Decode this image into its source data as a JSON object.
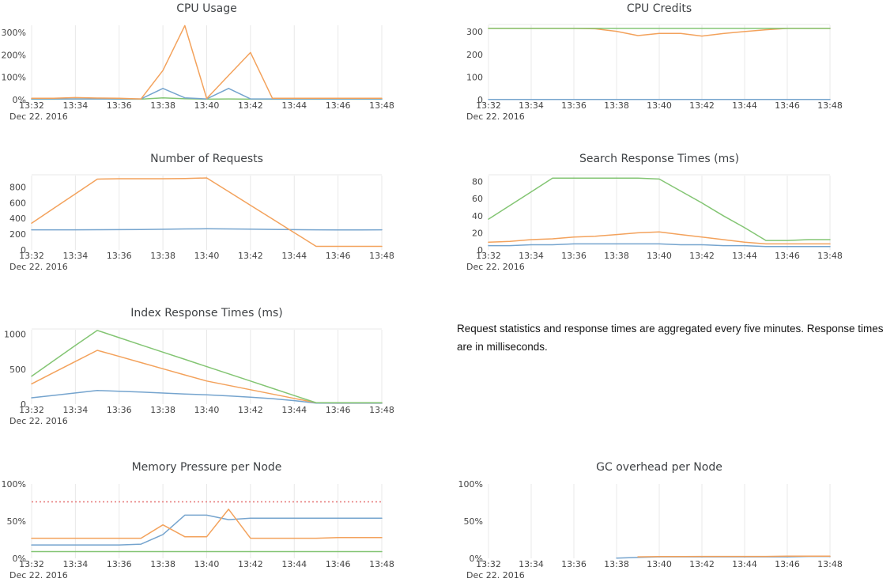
{
  "palette": {
    "blue": "#75a4ce",
    "orange": "#f3a25c",
    "green": "#83c573",
    "red": "#e88383",
    "grid": "#e8e8e8",
    "tick_text": "#444444",
    "title_text": "#3f4245"
  },
  "x_axis": {
    "tick_labels": [
      "13:32",
      "13:34",
      "13:36",
      "13:38",
      "13:40",
      "13:42",
      "13:44",
      "13:46",
      "13:48"
    ],
    "date_label": "Dec 22. 2016",
    "minutes": [
      32,
      33,
      34,
      35,
      36,
      37,
      38,
      39,
      40,
      41,
      42,
      43,
      44,
      45,
      46,
      47,
      48
    ]
  },
  "note": {
    "text": "Request statistics and response times are aggregated every five minutes. Response times are in milliseconds."
  },
  "chart_data": [
    {
      "type": "line",
      "title": "CPU Usage",
      "ylim": [
        0,
        335
      ],
      "y_ticks": [
        0,
        100,
        200,
        300
      ],
      "y_tick_labels": [
        "0%",
        "100%",
        "200%",
        "300%"
      ],
      "top_border": false,
      "series": [
        {
          "name": "series-green",
          "color": "green",
          "values": [
            2,
            2,
            3,
            3,
            2,
            2,
            8,
            4,
            2,
            3,
            2,
            2,
            2,
            2,
            2,
            2,
            2
          ]
        },
        {
          "name": "series-blue",
          "color": "blue",
          "values": [
            3,
            3,
            3,
            3,
            3,
            3,
            50,
            8,
            3,
            50,
            3,
            3,
            3,
            3,
            3,
            3,
            3
          ]
        },
        {
          "name": "series-orange",
          "color": "orange",
          "values": [
            6,
            6,
            9,
            7,
            6,
            3,
            130,
            330,
            5,
            108,
            210,
            6,
            6,
            6,
            6,
            6,
            6
          ]
        }
      ]
    },
    {
      "type": "line",
      "title": "CPU Credits",
      "ylim": [
        0,
        332
      ],
      "y_ticks": [
        0,
        100,
        200,
        300
      ],
      "y_tick_labels": [
        "0",
        "100",
        "200",
        "300"
      ],
      "top_border": true,
      "series": [
        {
          "name": "series-blue",
          "color": "blue",
          "values": [
            1,
            1,
            1,
            1,
            1,
            1,
            1,
            1,
            1,
            1,
            1,
            1,
            1,
            1,
            1,
            1,
            1
          ]
        },
        {
          "name": "series-orange",
          "color": "orange",
          "values": [
            315,
            315,
            315,
            315,
            315,
            313,
            302,
            283,
            293,
            293,
            281,
            292,
            301,
            309,
            315,
            315,
            315
          ]
        },
        {
          "name": "series-green",
          "color": "green",
          "values": [
            315,
            315,
            315,
            315,
            315,
            315,
            315,
            315,
            315,
            315,
            315,
            315,
            315,
            315,
            315,
            315,
            315
          ]
        }
      ]
    },
    {
      "type": "line",
      "title": "Number of Requests",
      "ylim": [
        0,
        955
      ],
      "y_ticks": [
        0,
        200,
        400,
        600,
        800
      ],
      "y_tick_labels": [
        "0",
        "200",
        "400",
        "600",
        "800"
      ],
      "top_border": true,
      "series": [
        {
          "name": "series-blue",
          "color": "blue",
          "values": [
            255,
            255,
            255,
            256,
            257,
            258,
            262,
            266,
            268,
            266,
            263,
            260,
            257,
            255,
            254,
            254,
            255
          ]
        },
        {
          "name": "series-orange",
          "color": "orange",
          "values": [
            340,
            527,
            713,
            900,
            905,
            905,
            905,
            908,
            915,
            741,
            567,
            393,
            219,
            45,
            45,
            45,
            45
          ]
        }
      ]
    },
    {
      "type": "line",
      "title": "Search Response Times (ms)",
      "ylim": [
        0,
        88
      ],
      "y_ticks": [
        0,
        20,
        40,
        60,
        80
      ],
      "y_tick_labels": [
        "0",
        "20",
        "40",
        "60",
        "80"
      ],
      "top_border": true,
      "series": [
        {
          "name": "series-blue",
          "color": "blue",
          "values": [
            5,
            5,
            6,
            6,
            7,
            7,
            7,
            7,
            7,
            6,
            6,
            5,
            5,
            4,
            4,
            4,
            4
          ]
        },
        {
          "name": "series-orange",
          "color": "orange",
          "values": [
            9,
            10,
            12,
            13,
            15,
            16,
            18,
            20,
            21,
            18,
            15,
            12,
            9,
            7,
            7,
            7,
            7
          ]
        },
        {
          "name": "series-green",
          "color": "green",
          "values": [
            36,
            52,
            68,
            84,
            84,
            84,
            84,
            84,
            83,
            69,
            55,
            40,
            26,
            11,
            11,
            12,
            12
          ]
        }
      ]
    },
    {
      "type": "line",
      "title": "Index Response Times (ms)",
      "ylim": [
        0,
        1075
      ],
      "y_ticks": [
        0,
        500,
        1000
      ],
      "y_tick_labels": [
        "0",
        "500",
        "1000"
      ],
      "top_border": true,
      "series": [
        {
          "name": "series-blue",
          "color": "blue",
          "values": [
            90,
            125,
            160,
            195,
            185,
            172,
            158,
            145,
            132,
            118,
            100,
            78,
            50,
            15,
            12,
            12,
            12
          ]
        },
        {
          "name": "series-orange",
          "color": "orange",
          "values": [
            290,
            450,
            610,
            770,
            682,
            594,
            506,
            418,
            330,
            268,
            206,
            144,
            82,
            20,
            18,
            18,
            18
          ]
        },
        {
          "name": "series-green",
          "color": "green",
          "values": [
            400,
            620,
            840,
            1055,
            950,
            846,
            743,
            640,
            536,
            433,
            330,
            226,
            122,
            20,
            20,
            20,
            20
          ]
        }
      ]
    },
    {
      "type": "line",
      "title": "Memory Pressure per Node",
      "ylim": [
        0,
        101
      ],
      "y_ticks": [
        0,
        50,
        100
      ],
      "y_tick_labels": [
        "0%",
        "50%",
        "100%"
      ],
      "top_border": false,
      "threshold": {
        "value": 76,
        "color": "red",
        "style": "dotted"
      },
      "series": [
        {
          "name": "series-green",
          "color": "green",
          "values": [
            9,
            9,
            9,
            9,
            9,
            9,
            9,
            9,
            9,
            9,
            9,
            9,
            9,
            9,
            9,
            9,
            9
          ]
        },
        {
          "name": "series-blue",
          "color": "blue",
          "values": [
            18,
            18,
            18,
            18,
            18,
            19,
            32,
            58,
            58,
            52,
            54,
            54,
            54,
            54,
            54,
            54,
            54
          ]
        },
        {
          "name": "series-orange",
          "color": "orange",
          "values": [
            27,
            27,
            27,
            27,
            27,
            27,
            45,
            29,
            29,
            66,
            27,
            27,
            27,
            27,
            28,
            28,
            28
          ]
        }
      ]
    },
    {
      "type": "line",
      "title": "GC overhead per Node",
      "ylim": [
        0,
        101
      ],
      "y_ticks": [
        0,
        50,
        100
      ],
      "y_tick_labels": [
        "0%",
        "50%",
        "100%"
      ],
      "top_border": false,
      "series": [
        {
          "name": "series-blue",
          "color": "blue",
          "values": [
            null,
            null,
            null,
            null,
            null,
            null,
            0.3,
            1.2,
            2,
            2,
            2,
            2,
            2,
            2,
            2,
            2.5,
            2.5
          ]
        },
        {
          "name": "series-orange",
          "color": "orange",
          "values": [
            null,
            null,
            null,
            null,
            null,
            null,
            null,
            2,
            2.3,
            2.4,
            2.5,
            2.5,
            2.5,
            2.5,
            3,
            3,
            3
          ]
        }
      ]
    }
  ]
}
